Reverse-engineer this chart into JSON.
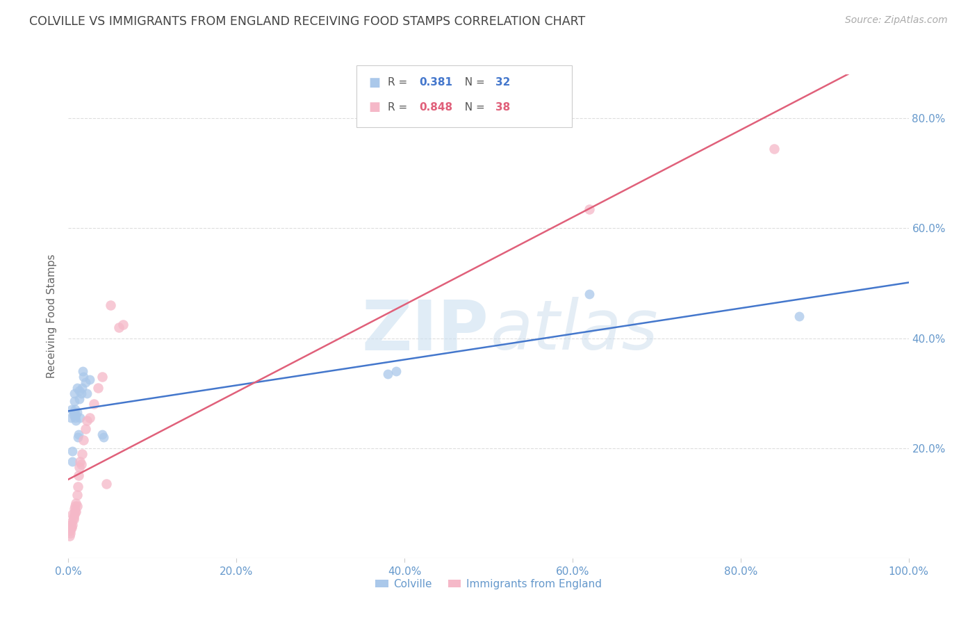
{
  "title": "COLVILLE VS IMMIGRANTS FROM ENGLAND RECEIVING FOOD STAMPS CORRELATION CHART",
  "source": "Source: ZipAtlas.com",
  "ylabel": "Receiving Food Stamps",
  "colville_R": 0.381,
  "colville_N": 32,
  "immigrants_R": 0.848,
  "immigrants_N": 38,
  "xlim": [
    0.0,
    1.0
  ],
  "ylim": [
    0.0,
    0.88
  ],
  "xtick_labels": [
    "0.0%",
    "20.0%",
    "40.0%",
    "60.0%",
    "80.0%",
    "100.0%"
  ],
  "xtick_vals": [
    0.0,
    0.2,
    0.4,
    0.6,
    0.8,
    1.0
  ],
  "ytick_labels": [
    "20.0%",
    "40.0%",
    "60.0%",
    "80.0%"
  ],
  "ytick_vals": [
    0.2,
    0.4,
    0.6,
    0.8
  ],
  "background_color": "#ffffff",
  "grid_color": "#dddddd",
  "colville_color": "#aac8ea",
  "immigrants_color": "#f5b8c8",
  "colville_line_color": "#4477cc",
  "immigrants_line_color": "#e0607a",
  "tick_color": "#6699cc",
  "title_color": "#444444",
  "colville_x": [
    0.003,
    0.004,
    0.005,
    0.005,
    0.006,
    0.006,
    0.007,
    0.007,
    0.008,
    0.008,
    0.009,
    0.009,
    0.01,
    0.01,
    0.011,
    0.012,
    0.013,
    0.013,
    0.014,
    0.015,
    0.016,
    0.017,
    0.018,
    0.02,
    0.022,
    0.025,
    0.04,
    0.042,
    0.38,
    0.39,
    0.62,
    0.87
  ],
  "colville_y": [
    0.255,
    0.27,
    0.195,
    0.175,
    0.26,
    0.265,
    0.285,
    0.3,
    0.27,
    0.255,
    0.25,
    0.26,
    0.265,
    0.31,
    0.22,
    0.225,
    0.305,
    0.29,
    0.255,
    0.3,
    0.31,
    0.34,
    0.33,
    0.32,
    0.3,
    0.325,
    0.225,
    0.22,
    0.335,
    0.34,
    0.48,
    0.44
  ],
  "immigrants_x": [
    0.001,
    0.002,
    0.002,
    0.003,
    0.003,
    0.004,
    0.004,
    0.005,
    0.005,
    0.006,
    0.006,
    0.007,
    0.007,
    0.008,
    0.008,
    0.009,
    0.009,
    0.01,
    0.01,
    0.011,
    0.012,
    0.013,
    0.014,
    0.015,
    0.016,
    0.018,
    0.02,
    0.022,
    0.025,
    0.03,
    0.035,
    0.04,
    0.045,
    0.05,
    0.06,
    0.065,
    0.62,
    0.84
  ],
  "immigrants_y": [
    0.04,
    0.045,
    0.05,
    0.055,
    0.06,
    0.055,
    0.065,
    0.06,
    0.08,
    0.07,
    0.075,
    0.08,
    0.09,
    0.085,
    0.095,
    0.085,
    0.1,
    0.095,
    0.115,
    0.13,
    0.15,
    0.165,
    0.175,
    0.17,
    0.19,
    0.215,
    0.235,
    0.25,
    0.255,
    0.28,
    0.31,
    0.33,
    0.135,
    0.46,
    0.42,
    0.425,
    0.635,
    0.745
  ]
}
